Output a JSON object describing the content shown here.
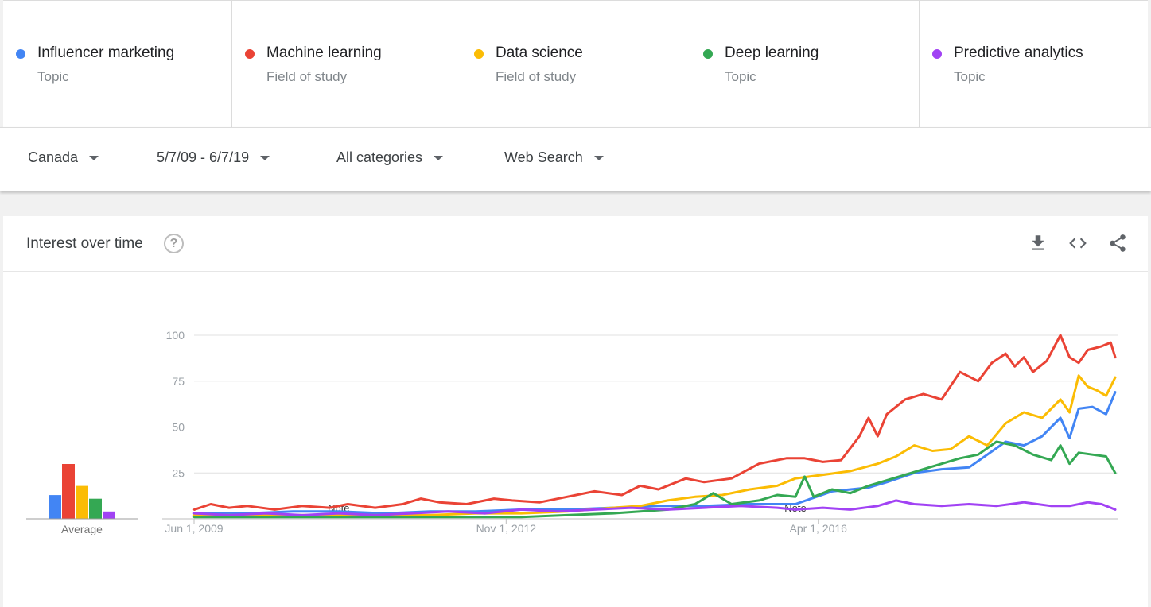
{
  "terms": [
    {
      "name": "Influencer marketing",
      "type": "Topic",
      "color": "#4285f4"
    },
    {
      "name": "Machine learning",
      "type": "Field of study",
      "color": "#ea4335"
    },
    {
      "name": "Data science",
      "type": "Field of study",
      "color": "#fbbc04"
    },
    {
      "name": "Deep learning",
      "type": "Topic",
      "color": "#34a853"
    },
    {
      "name": "Predictive analytics",
      "type": "Topic",
      "color": "#a142f4"
    }
  ],
  "filters": {
    "region": "Canada",
    "date_range": "5/7/09 - 6/7/19",
    "category": "All categories",
    "search_type": "Web Search"
  },
  "card": {
    "title": "Interest over time",
    "help_icon": "help-circle-icon",
    "icons": [
      "download-icon",
      "embed-code-icon",
      "share-icon"
    ]
  },
  "chart_data": {
    "type": "line",
    "ylim": [
      0,
      100
    ],
    "yticks": [
      25,
      50,
      75,
      100
    ],
    "xlim": [
      2009.417,
      2019.5
    ],
    "xticks": [
      {
        "label": "Jun 1, 2009",
        "x": 2009.417
      },
      {
        "label": "Nov 1, 2012",
        "x": 2012.833
      },
      {
        "label": "Apr 1, 2016",
        "x": 2016.25
      }
    ],
    "notes": [
      {
        "label": "Note",
        "x": 2011.0
      },
      {
        "label": "Note",
        "x": 2016.0
      }
    ],
    "averages": {
      "label": "Average",
      "values": [
        13,
        30,
        18,
        11,
        4
      ]
    },
    "series": [
      {
        "name": "Influencer marketing",
        "color": "#4285f4",
        "points": [
          [
            2009.42,
            3
          ],
          [
            2010.0,
            3
          ],
          [
            2010.5,
            4
          ],
          [
            2011.0,
            4
          ],
          [
            2011.5,
            3
          ],
          [
            2012.0,
            4
          ],
          [
            2012.5,
            4
          ],
          [
            2013.0,
            5
          ],
          [
            2013.5,
            5
          ],
          [
            2014.0,
            6
          ],
          [
            2014.5,
            7
          ],
          [
            2015.0,
            7
          ],
          [
            2015.5,
            8
          ],
          [
            2016.0,
            8
          ],
          [
            2016.4,
            15
          ],
          [
            2016.8,
            17
          ],
          [
            2017.0,
            20
          ],
          [
            2017.3,
            25
          ],
          [
            2017.6,
            27
          ],
          [
            2017.9,
            28
          ],
          [
            2018.1,
            35
          ],
          [
            2018.3,
            42
          ],
          [
            2018.5,
            40
          ],
          [
            2018.7,
            45
          ],
          [
            2018.9,
            55
          ],
          [
            2019.0,
            44
          ],
          [
            2019.1,
            60
          ],
          [
            2019.25,
            61
          ],
          [
            2019.4,
            57
          ],
          [
            2019.5,
            69
          ]
        ]
      },
      {
        "name": "Machine learning",
        "color": "#ea4335",
        "points": [
          [
            2009.42,
            5
          ],
          [
            2009.6,
            8
          ],
          [
            2009.8,
            6
          ],
          [
            2010.0,
            7
          ],
          [
            2010.3,
            5
          ],
          [
            2010.6,
            7
          ],
          [
            2010.9,
            6
          ],
          [
            2011.1,
            8
          ],
          [
            2011.4,
            6
          ],
          [
            2011.7,
            8
          ],
          [
            2011.9,
            11
          ],
          [
            2012.1,
            9
          ],
          [
            2012.4,
            8
          ],
          [
            2012.7,
            11
          ],
          [
            2012.9,
            10
          ],
          [
            2013.2,
            9
          ],
          [
            2013.5,
            12
          ],
          [
            2013.8,
            15
          ],
          [
            2014.1,
            13
          ],
          [
            2014.3,
            18
          ],
          [
            2014.5,
            16
          ],
          [
            2014.8,
            22
          ],
          [
            2015.0,
            20
          ],
          [
            2015.3,
            22
          ],
          [
            2015.6,
            30
          ],
          [
            2015.9,
            33
          ],
          [
            2016.1,
            33
          ],
          [
            2016.3,
            31
          ],
          [
            2016.5,
            32
          ],
          [
            2016.7,
            45
          ],
          [
            2016.8,
            55
          ],
          [
            2016.9,
            45
          ],
          [
            2017.0,
            57
          ],
          [
            2017.2,
            65
          ],
          [
            2017.4,
            68
          ],
          [
            2017.6,
            65
          ],
          [
            2017.8,
            80
          ],
          [
            2018.0,
            75
          ],
          [
            2018.15,
            85
          ],
          [
            2018.3,
            90
          ],
          [
            2018.4,
            83
          ],
          [
            2018.5,
            88
          ],
          [
            2018.6,
            80
          ],
          [
            2018.75,
            86
          ],
          [
            2018.9,
            100
          ],
          [
            2019.0,
            88
          ],
          [
            2019.1,
            85
          ],
          [
            2019.2,
            92
          ],
          [
            2019.35,
            94
          ],
          [
            2019.45,
            96
          ],
          [
            2019.5,
            88
          ]
        ]
      },
      {
        "name": "Data science",
        "color": "#fbbc04",
        "points": [
          [
            2009.42,
            2
          ],
          [
            2010.0,
            2
          ],
          [
            2010.5,
            2
          ],
          [
            2011.0,
            2
          ],
          [
            2011.5,
            2
          ],
          [
            2012.0,
            2
          ],
          [
            2012.5,
            3
          ],
          [
            2013.0,
            3
          ],
          [
            2013.5,
            4
          ],
          [
            2014.0,
            6
          ],
          [
            2014.3,
            7
          ],
          [
            2014.6,
            10
          ],
          [
            2014.9,
            12
          ],
          [
            2015.2,
            13
          ],
          [
            2015.5,
            16
          ],
          [
            2015.8,
            18
          ],
          [
            2016.0,
            22
          ],
          [
            2016.3,
            24
          ],
          [
            2016.6,
            26
          ],
          [
            2016.9,
            30
          ],
          [
            2017.1,
            34
          ],
          [
            2017.3,
            40
          ],
          [
            2017.5,
            37
          ],
          [
            2017.7,
            38
          ],
          [
            2017.9,
            45
          ],
          [
            2018.1,
            40
          ],
          [
            2018.3,
            52
          ],
          [
            2018.5,
            58
          ],
          [
            2018.7,
            55
          ],
          [
            2018.9,
            65
          ],
          [
            2019.0,
            58
          ],
          [
            2019.1,
            78
          ],
          [
            2019.2,
            72
          ],
          [
            2019.3,
            70
          ],
          [
            2019.4,
            67
          ],
          [
            2019.5,
            77
          ]
        ]
      },
      {
        "name": "Deep learning",
        "color": "#34a853",
        "points": [
          [
            2009.42,
            1
          ],
          [
            2010.0,
            1
          ],
          [
            2010.5,
            1
          ],
          [
            2011.0,
            1
          ],
          [
            2011.5,
            1
          ],
          [
            2012.0,
            1
          ],
          [
            2012.5,
            1
          ],
          [
            2013.0,
            1
          ],
          [
            2013.5,
            2
          ],
          [
            2014.0,
            3
          ],
          [
            2014.3,
            4
          ],
          [
            2014.6,
            5
          ],
          [
            2014.9,
            8
          ],
          [
            2015.1,
            14
          ],
          [
            2015.3,
            8
          ],
          [
            2015.6,
            10
          ],
          [
            2015.8,
            13
          ],
          [
            2016.0,
            12
          ],
          [
            2016.1,
            23
          ],
          [
            2016.2,
            12
          ],
          [
            2016.4,
            16
          ],
          [
            2016.6,
            14
          ],
          [
            2016.8,
            18
          ],
          [
            2017.0,
            21
          ],
          [
            2017.2,
            24
          ],
          [
            2017.4,
            27
          ],
          [
            2017.6,
            30
          ],
          [
            2017.8,
            33
          ],
          [
            2018.0,
            35
          ],
          [
            2018.2,
            42
          ],
          [
            2018.4,
            40
          ],
          [
            2018.6,
            35
          ],
          [
            2018.8,
            32
          ],
          [
            2018.9,
            40
          ],
          [
            2019.0,
            30
          ],
          [
            2019.1,
            36
          ],
          [
            2019.25,
            35
          ],
          [
            2019.4,
            34
          ],
          [
            2019.5,
            25
          ]
        ]
      },
      {
        "name": "Predictive analytics",
        "color": "#a142f4",
        "points": [
          [
            2009.42,
            3
          ],
          [
            2009.8,
            2
          ],
          [
            2010.2,
            3
          ],
          [
            2010.6,
            2
          ],
          [
            2011.0,
            3
          ],
          [
            2011.4,
            2
          ],
          [
            2011.8,
            3
          ],
          [
            2012.2,
            4
          ],
          [
            2012.6,
            3
          ],
          [
            2013.0,
            5
          ],
          [
            2013.4,
            4
          ],
          [
            2013.8,
            5
          ],
          [
            2014.2,
            6
          ],
          [
            2014.6,
            5
          ],
          [
            2015.0,
            6
          ],
          [
            2015.4,
            7
          ],
          [
            2015.8,
            6
          ],
          [
            2016.0,
            5
          ],
          [
            2016.3,
            6
          ],
          [
            2016.6,
            5
          ],
          [
            2016.9,
            7
          ],
          [
            2017.1,
            10
          ],
          [
            2017.3,
            8
          ],
          [
            2017.6,
            7
          ],
          [
            2017.9,
            8
          ],
          [
            2018.2,
            7
          ],
          [
            2018.5,
            9
          ],
          [
            2018.8,
            7
          ],
          [
            2019.0,
            7
          ],
          [
            2019.2,
            9
          ],
          [
            2019.35,
            8
          ],
          [
            2019.5,
            5
          ]
        ]
      }
    ]
  }
}
